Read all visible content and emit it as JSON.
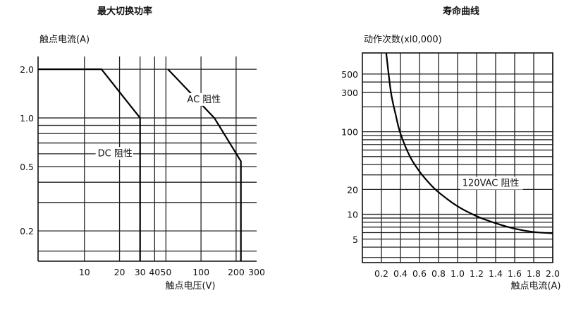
{
  "chart_data": [
    {
      "type": "line",
      "title": "最大切换功率",
      "ylabel": "触点电流(A)",
      "xlabel": "触点电压(V)",
      "xscale": "log",
      "yscale": "log",
      "xlim": [
        4,
        300
      ],
      "ylim": [
        0.13,
        2.4
      ],
      "x_ticks": [
        10,
        20,
        30,
        40,
        50,
        100,
        200,
        300
      ],
      "x_tick_labels": [
        "10",
        "20",
        "30",
        "40",
        "50",
        "100",
        "200",
        "300"
      ],
      "x_grid": [
        10,
        20,
        30,
        40,
        50,
        100,
        200
      ],
      "y_ticks": [
        0.2,
        0.5,
        1.0,
        2.0
      ],
      "y_tick_labels": [
        "0.2",
        "0.5",
        "1.0",
        "2.0"
      ],
      "y_grid": [
        0.15,
        0.2,
        0.3,
        0.4,
        0.5,
        0.6,
        0.7,
        0.8,
        0.9,
        1.0,
        2.0
      ],
      "grid": true,
      "series": [
        {
          "name": "DC 阻性",
          "points": [
            [
              4,
              2.0
            ],
            [
              14,
              2.0
            ],
            [
              30,
              1.0
            ],
            [
              30,
              0.13
            ]
          ]
        },
        {
          "name": "AC 阻性",
          "points": [
            [
              52,
              2.0
            ],
            [
              130,
              1.0
            ],
            [
              220,
              0.54
            ],
            [
              220,
              0.13
            ]
          ]
        }
      ],
      "annotations": [
        {
          "text": "DC 阻性",
          "x": 13,
          "y": 0.58
        },
        {
          "text": "AC 阻性",
          "x": 76,
          "y": 1.25
        }
      ]
    },
    {
      "type": "line",
      "title": "寿命曲线",
      "ylabel": "动作次数(xl0,000)",
      "xlabel": "触点电流(A)",
      "xscale": "linear",
      "yscale": "log",
      "xlim": [
        0,
        2.0
      ],
      "ylim": [
        2.6,
        900
      ],
      "x_ticks": [
        0.2,
        0.4,
        0.6,
        0.8,
        1.0,
        1.2,
        1.4,
        1.6,
        1.8,
        2.0
      ],
      "x_tick_labels": [
        "0.2",
        "0.4",
        "0.6",
        "0.8",
        "1.0",
        "1.2",
        "1.4",
        "1.6",
        "1.8",
        "2.0"
      ],
      "y_ticks": [
        5,
        10,
        20,
        100,
        300,
        500
      ],
      "y_tick_labels": [
        "5",
        "10",
        "20",
        "100",
        "300",
        "500"
      ],
      "y_grid": [
        3,
        4,
        5,
        6,
        7,
        8,
        9,
        10,
        20,
        30,
        40,
        50,
        60,
        70,
        80,
        90,
        100,
        200,
        300,
        400,
        500
      ],
      "grid": true,
      "series": [
        {
          "name": "120VAC 阻性",
          "points": [
            [
              0.25,
              900
            ],
            [
              0.3,
              300
            ],
            [
              0.35,
              160
            ],
            [
              0.4,
              95
            ],
            [
              0.5,
              50
            ],
            [
              0.6,
              33
            ],
            [
              0.7,
              24
            ],
            [
              0.8,
              18.5
            ],
            [
              1.0,
              12.5
            ],
            [
              1.2,
              9.5
            ],
            [
              1.4,
              7.8
            ],
            [
              1.6,
              6.7
            ],
            [
              1.8,
              6.1
            ],
            [
              2.0,
              5.9
            ]
          ]
        }
      ],
      "annotations": [
        {
          "text": "120VAC 阻性",
          "x": 1.05,
          "y": 22
        }
      ]
    }
  ]
}
